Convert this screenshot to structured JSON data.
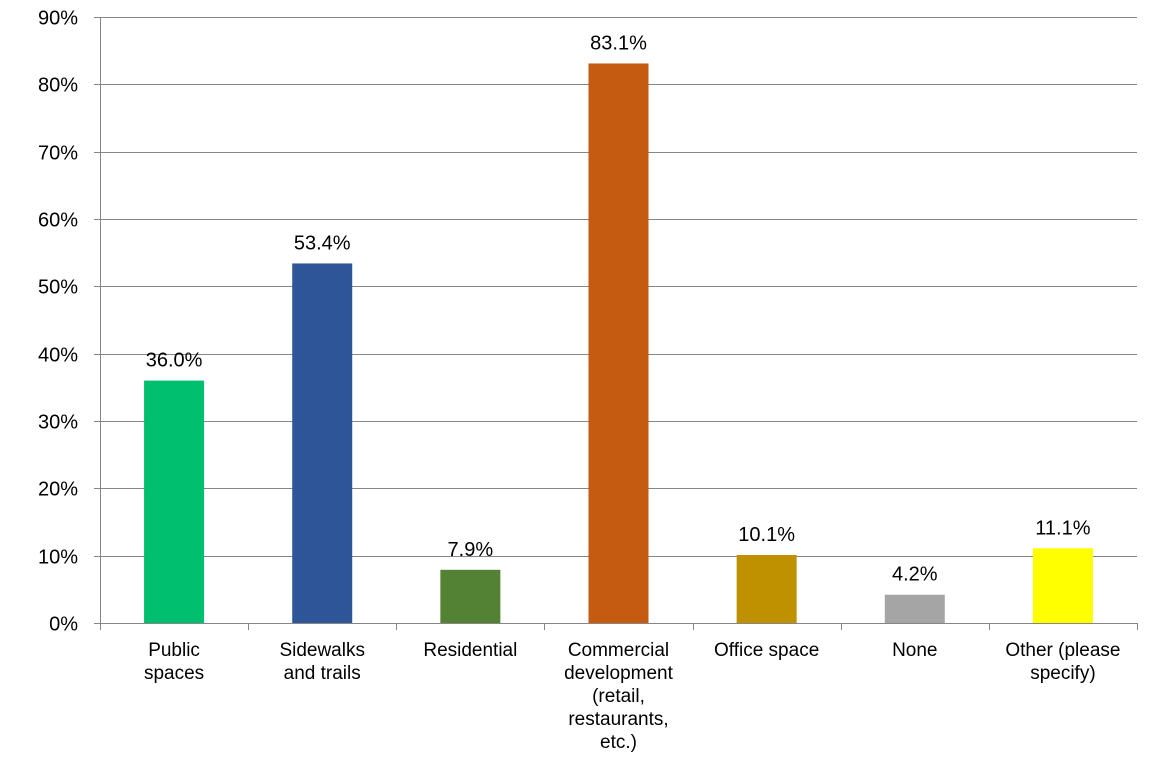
{
  "chart_data": {
    "type": "bar",
    "categories": [
      [
        "Public",
        "spaces"
      ],
      [
        "Sidewalks",
        "and trails"
      ],
      [
        "Residential"
      ],
      [
        "Commercial",
        "development",
        "(retail,",
        "restaurants,",
        "etc.)"
      ],
      [
        "Office space"
      ],
      [
        "None"
      ],
      [
        "Other (please",
        "specify)"
      ]
    ],
    "values": [
      36.0,
      53.4,
      7.9,
      83.1,
      10.1,
      4.2,
      11.1
    ],
    "value_labels": [
      "36.0%",
      "53.4%",
      "7.9%",
      "83.1%",
      "10.1%",
      "4.2%",
      "11.1%"
    ],
    "colors": [
      "#00c06f",
      "#2e5597",
      "#548235",
      "#c55a11",
      "#bf9000",
      "#a5a5a5",
      "#ffff00"
    ],
    "y_ticks": [
      "0%",
      "10%",
      "20%",
      "30%",
      "40%",
      "50%",
      "60%",
      "70%",
      "80%",
      "90%"
    ],
    "ylim": [
      0,
      90
    ],
    "grid": true,
    "legend": "none"
  }
}
